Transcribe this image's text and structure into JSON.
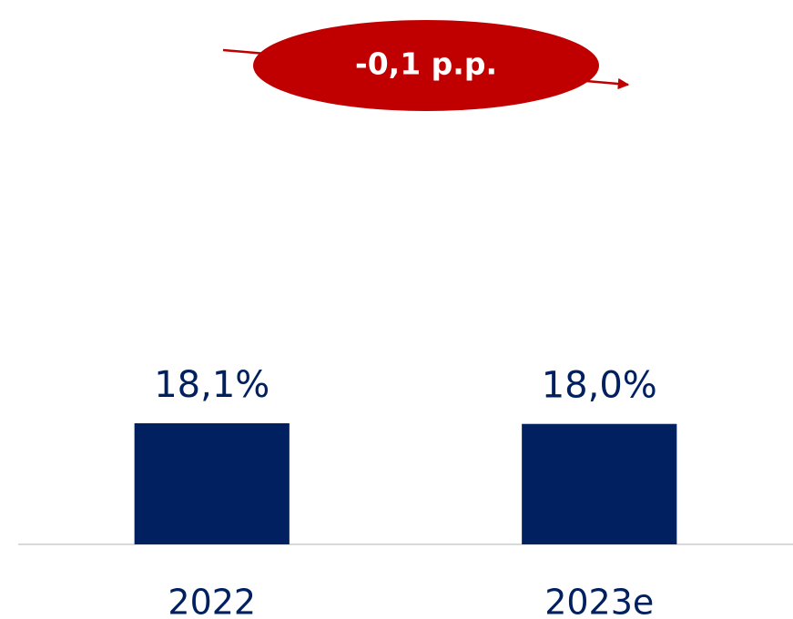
{
  "chart_data": {
    "type": "bar",
    "annotation": "-0,1 p.p.",
    "categories": [
      "2022",
      "2023e"
    ],
    "values": [
      18.1,
      18.0
    ],
    "value_labels": [
      "18,1%",
      "18,0%"
    ],
    "color": "#002060",
    "ylim": [
      0,
      80
    ]
  }
}
